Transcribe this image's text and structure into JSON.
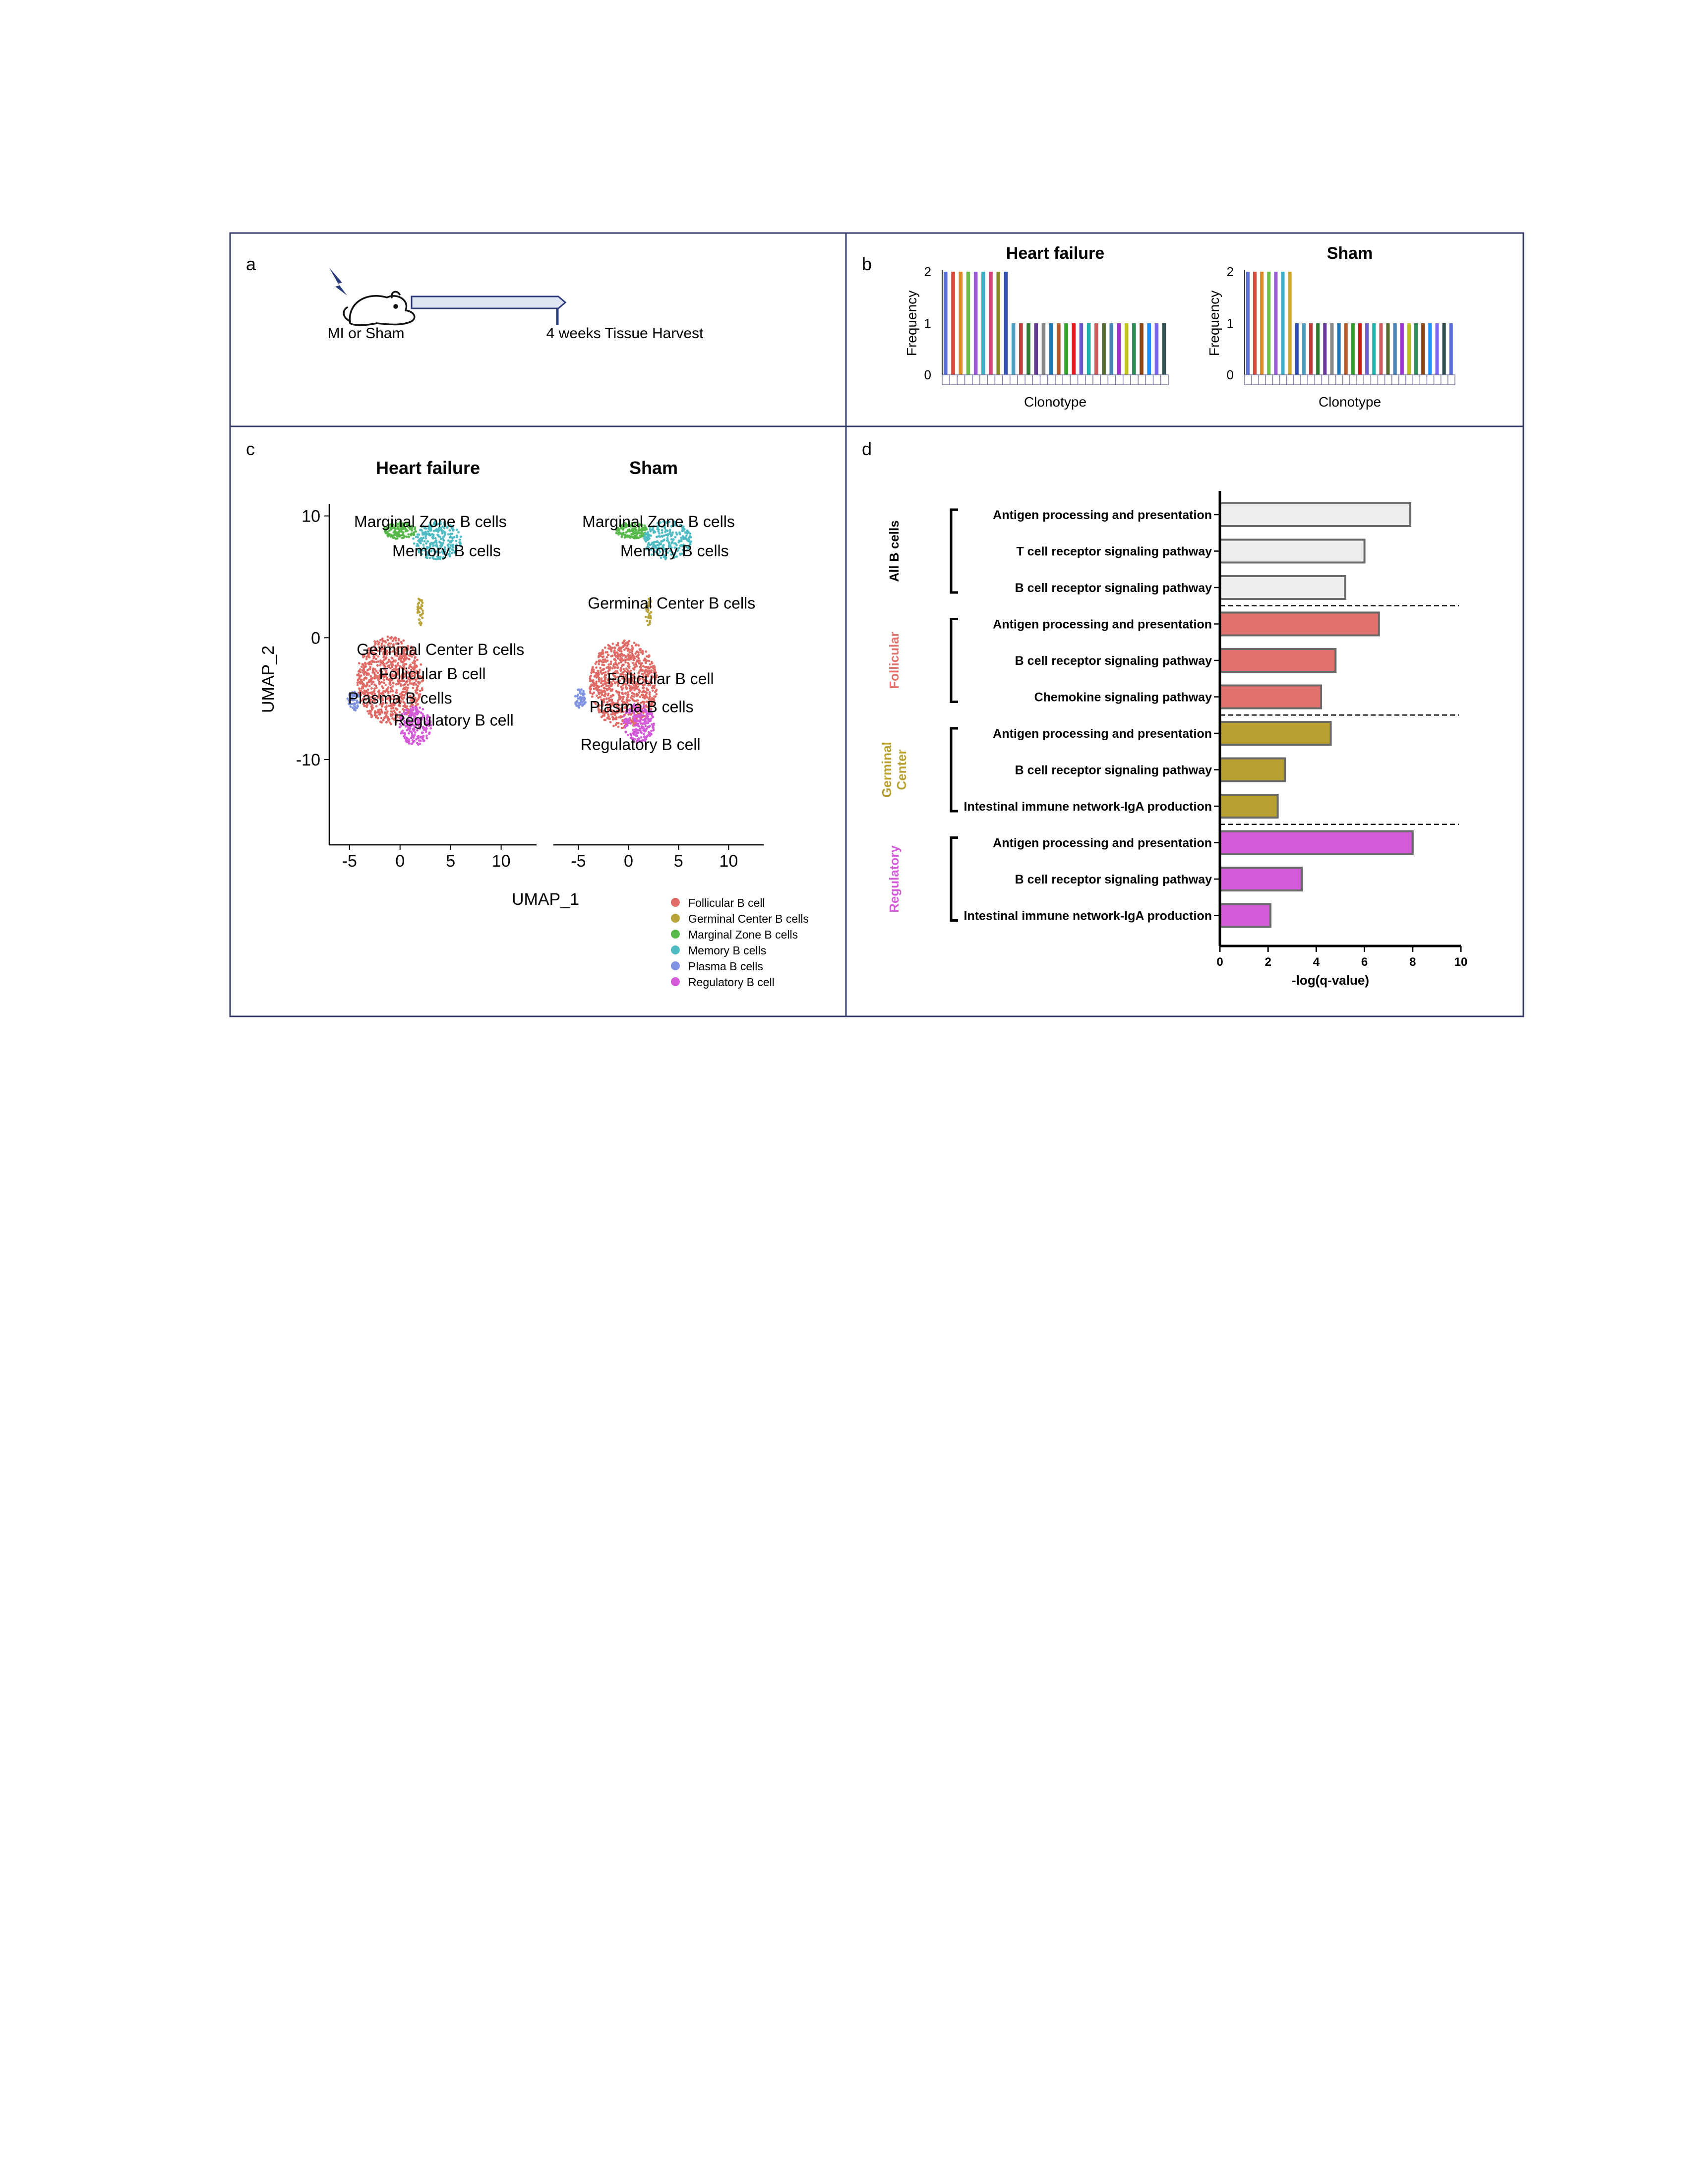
{
  "panels": {
    "a": {
      "letter": "a",
      "start_label": "MI or Sham",
      "end_label": "4 weeks Tissue Harvest"
    },
    "b": {
      "letter": "b"
    },
    "c": {
      "letter": "c",
      "xlabel": "UMAP_1",
      "ylabel": "UMAP_2"
    },
    "d": {
      "letter": "d"
    }
  },
  "chart_data": [
    {
      "id": "clonotype-heart-failure",
      "type": "bar",
      "title": "Heart failure",
      "xlabel": "Clonotype",
      "ylabel": "Frequency",
      "ylim": [
        0,
        2
      ],
      "yticks": [
        "0",
        "1",
        "2"
      ],
      "values": [
        2,
        2,
        2,
        2,
        2,
        2,
        2,
        2,
        2,
        1,
        1,
        1,
        1,
        1,
        1,
        1,
        1,
        1,
        1,
        1,
        1,
        1,
        1,
        1,
        1,
        1,
        1,
        1,
        1,
        1
      ],
      "colors": [
        "#5b6fd6",
        "#d64b3c",
        "#e08a2a",
        "#6fbf4a",
        "#9a5bd6",
        "#3fb0c8",
        "#d6477f",
        "#8a8a2a",
        "#2f4fb0",
        "#4fa0c0",
        "#c04040",
        "#2e7d32",
        "#6a3d9a",
        "#888888",
        "#1f78b4",
        "#b15928",
        "#33a02c",
        "#e31a1c",
        "#6a5acd",
        "#20b2aa",
        "#cd5c5c",
        "#556b2f",
        "#4682b4",
        "#9932cc",
        "#c0c020",
        "#2e8b57",
        "#8b4513",
        "#1e90ff",
        "#7b68ee",
        "#2f4f4f"
      ]
    },
    {
      "id": "clonotype-sham",
      "type": "bar",
      "title": "Sham",
      "xlabel": "Clonotype",
      "ylabel": "Frequency",
      "ylim": [
        0,
        2
      ],
      "yticks": [
        "0",
        "1",
        "2"
      ],
      "values": [
        2,
        2,
        2,
        2,
        2,
        2,
        2,
        1,
        1,
        1,
        1,
        1,
        1,
        1,
        1,
        1,
        1,
        1,
        1,
        1,
        1,
        1,
        1,
        1,
        1,
        1,
        1,
        1,
        1,
        1
      ],
      "colors": [
        "#5b6fd6",
        "#d64b3c",
        "#e08a2a",
        "#6fbf4a",
        "#9a5bd6",
        "#3fb0c8",
        "#c9a227",
        "#2f4fb0",
        "#4fa0c0",
        "#c04040",
        "#2e7d32",
        "#6a3d9a",
        "#888888",
        "#1f78b4",
        "#b15928",
        "#33a02c",
        "#e31a1c",
        "#6a5acd",
        "#20b2aa",
        "#cd5c5c",
        "#556b2f",
        "#4682b4",
        "#9932cc",
        "#c0c020",
        "#2e8b57",
        "#8b4513",
        "#1e90ff",
        "#7b68ee",
        "#2f4f4f",
        "#5b6fd6"
      ]
    },
    {
      "id": "umap-heart-failure",
      "type": "scatter",
      "title": "Heart failure",
      "xlabel": "UMAP_1",
      "ylabel": "UMAP_2",
      "xlim": [
        -7,
        13.5
      ],
      "ylim": [
        -17,
        11
      ],
      "xticks": [
        -5,
        0,
        5,
        10
      ],
      "yticks": [
        -10,
        0,
        10
      ],
      "clusters": [
        {
          "name": "Follicular B cell",
          "color": "#e06b66",
          "cx": -1.0,
          "cy": -3.5,
          "rx": 3.3,
          "ry": 3.6,
          "n": 900
        },
        {
          "name": "Germinal Center B cells",
          "color": "#b8a43a",
          "cx": 2.0,
          "cy": 2.2,
          "rx": 0.3,
          "ry": 1.2,
          "n": 40
        },
        {
          "name": "Marginal Zone B cells",
          "color": "#56b94a",
          "cx": 0.0,
          "cy": 8.8,
          "rx": 1.6,
          "ry": 0.7,
          "n": 160
        },
        {
          "name": "Memory B cells",
          "color": "#4fbcc4",
          "cx": 3.7,
          "cy": 8.0,
          "rx": 2.4,
          "ry": 1.6,
          "n": 260
        },
        {
          "name": "Plasma B cells",
          "color": "#7f93e0",
          "cx": -4.6,
          "cy": -5.2,
          "rx": 0.6,
          "ry": 0.8,
          "n": 60
        },
        {
          "name": "Regulatory B cell",
          "color": "#d45bd8",
          "cx": 1.5,
          "cy": -7.2,
          "rx": 1.6,
          "ry": 1.6,
          "n": 220
        }
      ],
      "labels": [
        {
          "text": "Marginal Zone B cells",
          "x": 3.0,
          "y": 9.5
        },
        {
          "text": "Memory B cells",
          "x": 4.6,
          "y": 7.1
        },
        {
          "text": "Germinal Center B cells",
          "x": 4.0,
          "y": -1.0
        },
        {
          "text": "Follicular B cell",
          "x": 3.2,
          "y": -3.0
        },
        {
          "text": "Plasma B cells",
          "x": 0.0,
          "y": -5.0
        },
        {
          "text": "Regulatory B cell",
          "x": 5.3,
          "y": -6.8
        }
      ]
    },
    {
      "id": "umap-sham",
      "type": "scatter",
      "title": "Sham",
      "xlabel": "UMAP_1",
      "ylabel": "UMAP_2",
      "xlim": [
        -7.5,
        13.5
      ],
      "ylim": [
        -17,
        11
      ],
      "xticks": [
        -5,
        0,
        5,
        10
      ],
      "yticks": [
        -10,
        0,
        10
      ],
      "clusters": [
        {
          "name": "Follicular B cell",
          "color": "#e06b66",
          "cx": -0.5,
          "cy": -3.8,
          "rx": 3.4,
          "ry": 3.6,
          "n": 900
        },
        {
          "name": "Germinal Center B cells",
          "color": "#b8a43a",
          "cx": 2.0,
          "cy": 2.2,
          "rx": 0.3,
          "ry": 1.2,
          "n": 40
        },
        {
          "name": "Marginal Zone B cells",
          "color": "#56b94a",
          "cx": 0.3,
          "cy": 8.8,
          "rx": 1.6,
          "ry": 0.7,
          "n": 160
        },
        {
          "name": "Memory B cells",
          "color": "#4fbcc4",
          "cx": 3.9,
          "cy": 8.0,
          "rx": 2.4,
          "ry": 1.6,
          "n": 260
        },
        {
          "name": "Plasma B cells",
          "color": "#7f93e0",
          "cx": -4.8,
          "cy": -5.0,
          "rx": 0.6,
          "ry": 0.8,
          "n": 60
        },
        {
          "name": "Regulatory B cell",
          "color": "#d45bd8",
          "cx": 1.0,
          "cy": -7.0,
          "rx": 1.6,
          "ry": 1.6,
          "n": 220
        }
      ],
      "labels": [
        {
          "text": "Marginal Zone B cells",
          "x": 3.0,
          "y": 9.5
        },
        {
          "text": "Memory B cells",
          "x": 4.6,
          "y": 7.1
        },
        {
          "text": "Germinal Center B cells",
          "x": 4.3,
          "y": 2.8
        },
        {
          "text": "Follicular B cell",
          "x": 3.2,
          "y": -3.4
        },
        {
          "text": "Plasma B cells",
          "x": 1.3,
          "y": -5.7
        },
        {
          "text": "Regulatory B cell",
          "x": 1.2,
          "y": -8.8
        }
      ]
    },
    {
      "id": "umap-legend",
      "type": "legend",
      "entries": [
        {
          "name": "Follicular B cell",
          "color": "#e06b66"
        },
        {
          "name": "Germinal Center B cells",
          "color": "#b8a43a"
        },
        {
          "name": "Marginal Zone B cells",
          "color": "#56b94a"
        },
        {
          "name": "Memory B cells",
          "color": "#4fbcc4"
        },
        {
          "name": "Plasma B cells",
          "color": "#7f93e0"
        },
        {
          "name": "Regulatory B cell",
          "color": "#d45bd8"
        }
      ]
    },
    {
      "id": "pathway-enrichment",
      "type": "bar",
      "orientation": "horizontal",
      "xlabel": "-log(q-value)",
      "xlim": [
        0,
        10
      ],
      "xticks": [
        0,
        2,
        4,
        6,
        8,
        10
      ],
      "groups": [
        {
          "name": "All B cells",
          "color": "#000000",
          "bar_color": "#eeeeee",
          "pathways": [
            "Antigen processing and presentation",
            "T cell receptor signaling pathway",
            "B cell receptor signaling pathway"
          ],
          "values": [
            7.9,
            6.0,
            5.2
          ]
        },
        {
          "name": "Follicular",
          "color": "#e0716c",
          "bar_color": "#e0716c",
          "pathways": [
            "Antigen processing and presentation",
            "B cell receptor signaling pathway",
            "Chemokine signaling pathway"
          ],
          "values": [
            6.6,
            4.8,
            4.2
          ]
        },
        {
          "name": "Germinal Center",
          "name_lines": [
            "Germinal",
            "Center"
          ],
          "color": "#b8a030",
          "bar_color": "#b8a030",
          "pathways": [
            "Antigen processing and presentation",
            "B cell receptor signaling pathway",
            "Intestinal immune network-IgA production"
          ],
          "values": [
            4.6,
            2.7,
            2.4
          ]
        },
        {
          "name": "Regulatory",
          "color": "#d45bd8",
          "bar_color": "#d45bd8",
          "pathways": [
            "Antigen processing and presentation",
            "B cell receptor signaling pathway",
            "Intestinal immune network-IgA production"
          ],
          "values": [
            8.0,
            3.4,
            2.1
          ]
        }
      ]
    }
  ]
}
